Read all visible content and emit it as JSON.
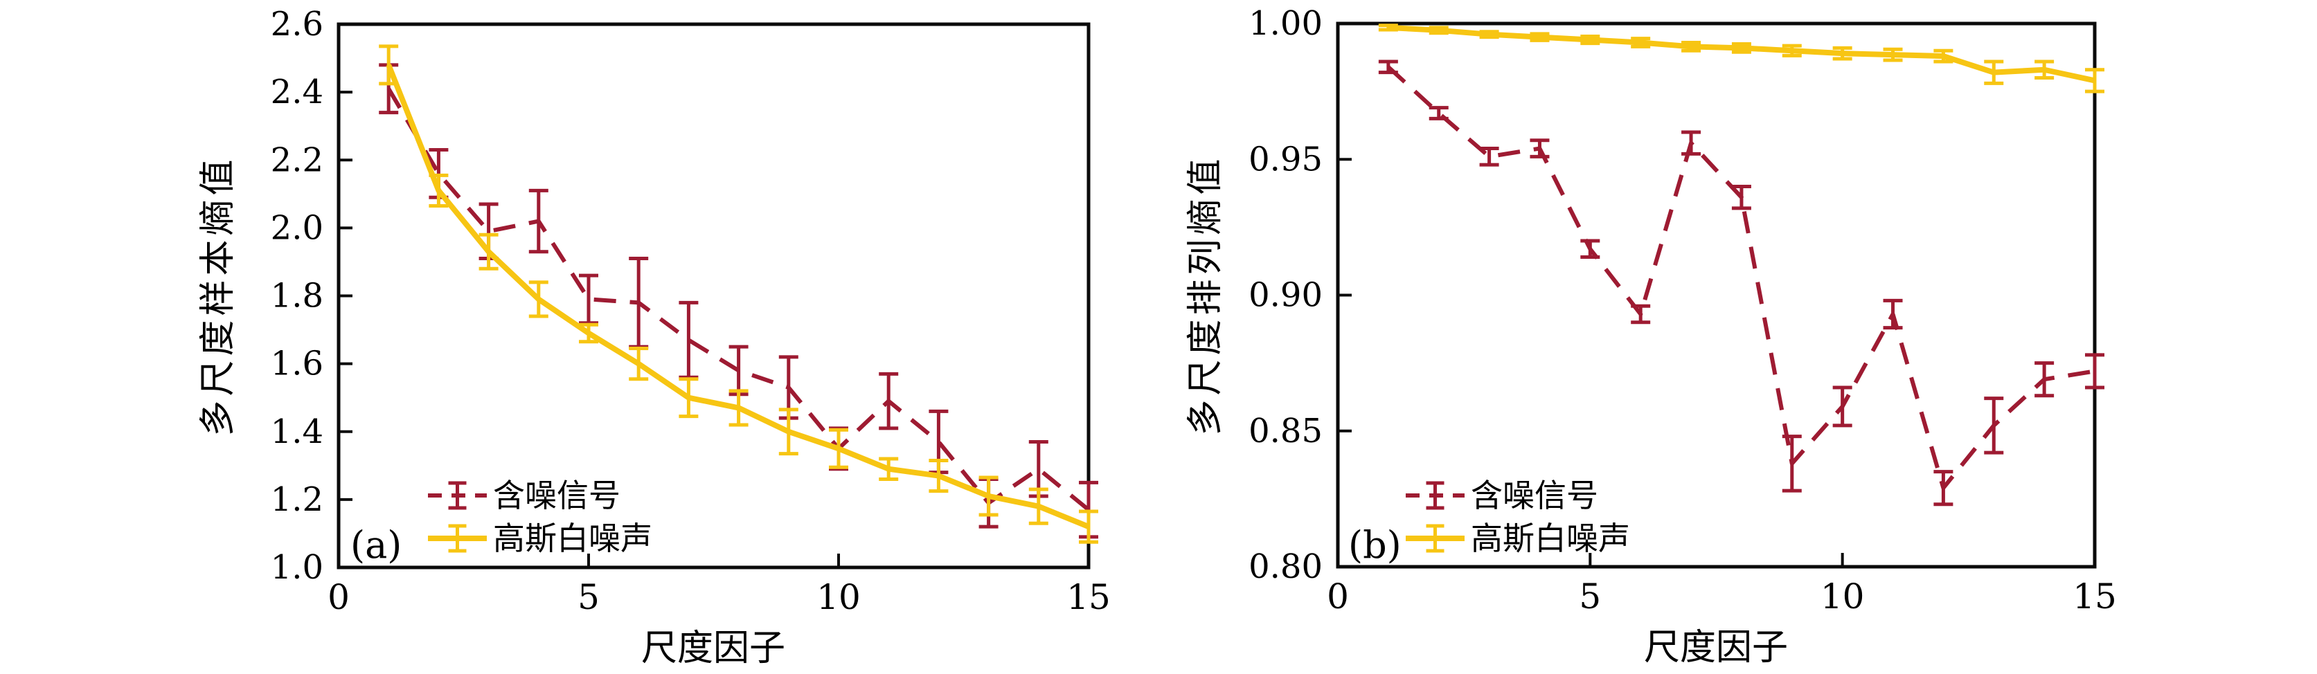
{
  "figure": {
    "background": "#ffffff",
    "axis_color": "#0a0a0a",
    "text_color": "#000000"
  },
  "chart_data": [
    {
      "type": "line",
      "panel_label": "(a)",
      "xlabel": "尺度因子",
      "ylabel": "多尺度样本熵值",
      "xlim": [
        0,
        15
      ],
      "ylim": [
        1.0,
        2.6
      ],
      "xticks": [
        0,
        5,
        10,
        15
      ],
      "ytick_labels": [
        "1.0",
        "1.2",
        "1.4",
        "1.6",
        "1.8",
        "2.0",
        "2.2",
        "2.4",
        "2.6"
      ],
      "grid": false,
      "legend_position": "lower-left",
      "x": [
        1,
        2,
        3,
        4,
        5,
        6,
        7,
        8,
        9,
        10,
        11,
        12,
        13,
        14,
        15
      ],
      "series": [
        {
          "name": "含噪信号",
          "color": "#9e1b32",
          "line_style": "dashed",
          "values": [
            2.41,
            2.16,
            1.99,
            2.02,
            1.79,
            1.78,
            1.67,
            1.58,
            1.53,
            1.35,
            1.49,
            1.37,
            1.19,
            1.29,
            1.17
          ],
          "errors": [
            0.07,
            0.07,
            0.08,
            0.09,
            0.07,
            0.13,
            0.11,
            0.07,
            0.09,
            0.06,
            0.08,
            0.09,
            0.07,
            0.08,
            0.08
          ]
        },
        {
          "name": "高斯白噪声",
          "color": "#f7c513",
          "line_style": "solid",
          "values": [
            2.48,
            2.11,
            1.93,
            1.79,
            1.69,
            1.6,
            1.5,
            1.47,
            1.4,
            1.35,
            1.29,
            1.27,
            1.21,
            1.18,
            1.12
          ],
          "errors": [
            0.055,
            0.045,
            0.05,
            0.05,
            0.025,
            0.045,
            0.055,
            0.05,
            0.065,
            0.055,
            0.03,
            0.045,
            0.055,
            0.05,
            0.045
          ]
        }
      ]
    },
    {
      "type": "line",
      "panel_label": "(b)",
      "xlabel": "尺度因子",
      "ylabel": "多尺度排列熵值",
      "xlim": [
        0,
        15
      ],
      "ylim": [
        0.8,
        1.0
      ],
      "xticks": [
        0,
        5,
        10,
        15
      ],
      "ytick_labels": [
        "0.80",
        "0.85",
        "0.90",
        "0.95",
        "1.00"
      ],
      "grid": false,
      "legend_position": "lower-left",
      "x": [
        1,
        2,
        3,
        4,
        5,
        6,
        7,
        8,
        9,
        10,
        11,
        12,
        13,
        14,
        15
      ],
      "series": [
        {
          "name": "含噪信号",
          "color": "#9e1b32",
          "line_style": "dashed",
          "values": [
            0.984,
            0.967,
            0.951,
            0.954,
            0.917,
            0.893,
            0.956,
            0.936,
            0.838,
            0.859,
            0.893,
            0.829,
            0.852,
            0.869,
            0.872
          ],
          "errors": [
            0.002,
            0.002,
            0.003,
            0.003,
            0.003,
            0.003,
            0.004,
            0.004,
            0.01,
            0.007,
            0.005,
            0.006,
            0.01,
            0.006,
            0.006
          ]
        },
        {
          "name": "高斯白噪声",
          "color": "#f7c513",
          "line_style": "solid",
          "values": [
            0.9985,
            0.9975,
            0.996,
            0.995,
            0.994,
            0.993,
            0.9915,
            0.991,
            0.99,
            0.989,
            0.9885,
            0.988,
            0.982,
            0.983,
            0.979
          ],
          "errors": [
            0.0008,
            0.001,
            0.001,
            0.0012,
            0.0013,
            0.0015,
            0.0015,
            0.0015,
            0.0018,
            0.002,
            0.002,
            0.002,
            0.004,
            0.003,
            0.004
          ]
        }
      ]
    }
  ]
}
